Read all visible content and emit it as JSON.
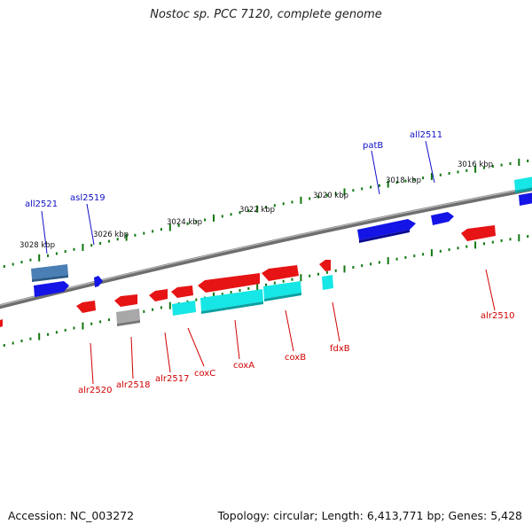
{
  "title": "Nostoc sp. PCC 7120, complete genome",
  "accession_label": "Accession: NC_003272",
  "topology_label": "Topology: circular; Length: 6,413,771 bp; Genes: 5,428",
  "colors": {
    "forward_gene": "#1414e6",
    "forward_rna": "#4a7fb5",
    "reverse_gene": "#e61414",
    "reverse_cds": "#16e6e6",
    "pseudo": "#a8a8a8",
    "backbone": "#808080",
    "tick": "#117711",
    "forward_label": "#1010c8",
    "reverse_label": "#d00000"
  },
  "ticks": [
    {
      "label": "3028 kbp"
    },
    {
      "label": "3026 kbp"
    },
    {
      "label": "3024 kbp"
    },
    {
      "label": "3022 kbp"
    },
    {
      "label": "3020 kbp"
    },
    {
      "label": "3018 kbp"
    },
    {
      "label": "3016 kbp"
    }
  ],
  "gene_labels": {
    "forward": [
      "all2521",
      "asl2519",
      "patB",
      "all2511"
    ],
    "reverse": [
      "alr2520",
      "alr2518",
      "alr2517",
      "coxC",
      "coxA",
      "coxB",
      "fdxB",
      "alr2510"
    ]
  }
}
